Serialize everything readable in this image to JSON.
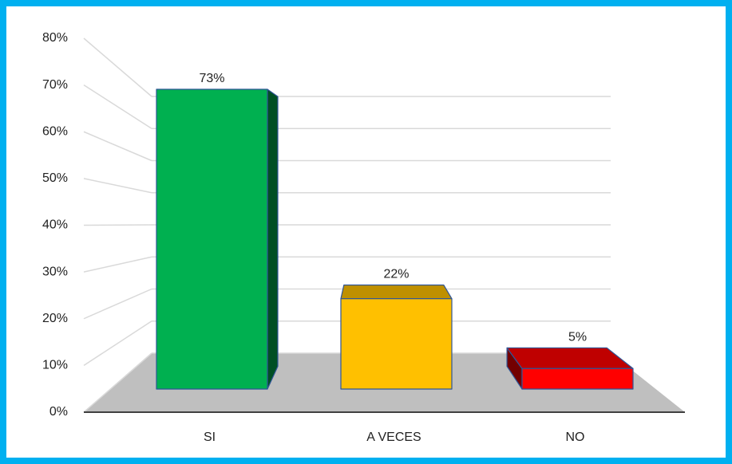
{
  "chart_data": {
    "type": "bar3d",
    "categories": [
      "SI",
      "A VECES",
      "NO"
    ],
    "values": [
      73,
      22,
      5
    ],
    "value_labels": [
      "73%",
      "22%",
      "5%"
    ],
    "colors": [
      "#00b050",
      "#ffc000",
      "#ff0000"
    ],
    "ylim": [
      0,
      80
    ],
    "yticks": [
      {
        "value": 0,
        "label": "0%"
      },
      {
        "value": 10,
        "label": "10%"
      },
      {
        "value": 20,
        "label": "20%"
      },
      {
        "value": 30,
        "label": "30%"
      },
      {
        "value": 40,
        "label": "40%"
      },
      {
        "value": 50,
        "label": "50%"
      },
      {
        "value": 60,
        "label": "60%"
      },
      {
        "value": 70,
        "label": "70%"
      },
      {
        "value": 80,
        "label": "80%"
      }
    ],
    "grid": true
  }
}
